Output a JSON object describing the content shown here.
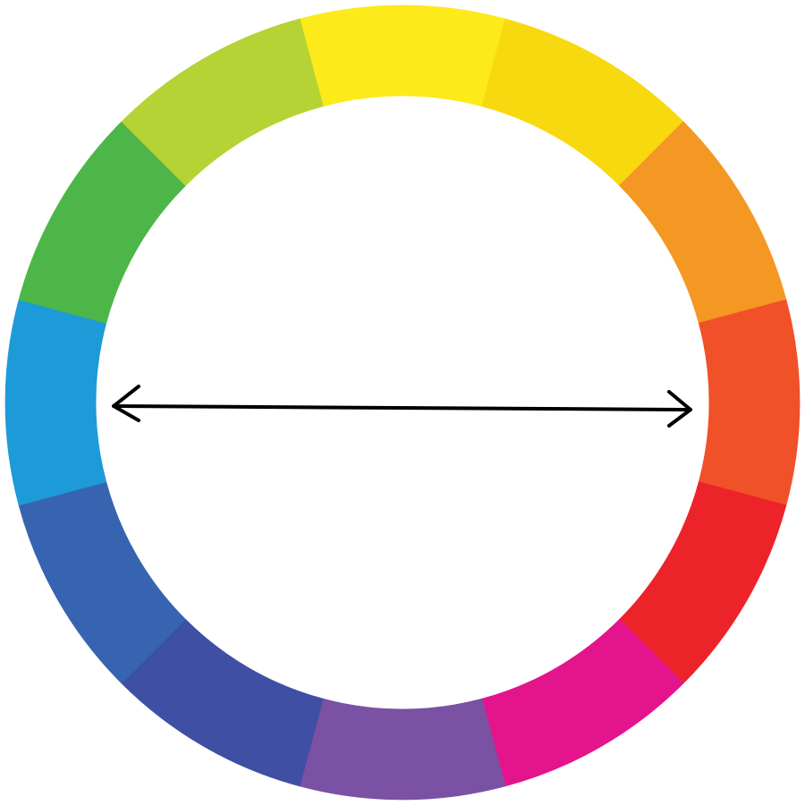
{
  "color_wheel": {
    "segments": [
      {
        "name": "yellow",
        "color": "#fcea1b"
      },
      {
        "name": "yellow-orange",
        "color": "#f8d90f"
      },
      {
        "name": "orange",
        "color": "#f49723"
      },
      {
        "name": "red-orange",
        "color": "#f05129"
      },
      {
        "name": "red",
        "color": "#ed232a"
      },
      {
        "name": "red-violet",
        "color": "#e4148c"
      },
      {
        "name": "violet",
        "color": "#7b51a3"
      },
      {
        "name": "blue-violet",
        "color": "#3f4fa4"
      },
      {
        "name": "blue",
        "color": "#3764b0"
      },
      {
        "name": "blue-green",
        "color": "#1d9ad8"
      },
      {
        "name": "green",
        "color": "#4db648"
      },
      {
        "name": "yellow-green",
        "color": "#b5d335"
      }
    ],
    "arrow": {
      "type": "double-headed",
      "color": "#000000"
    }
  }
}
